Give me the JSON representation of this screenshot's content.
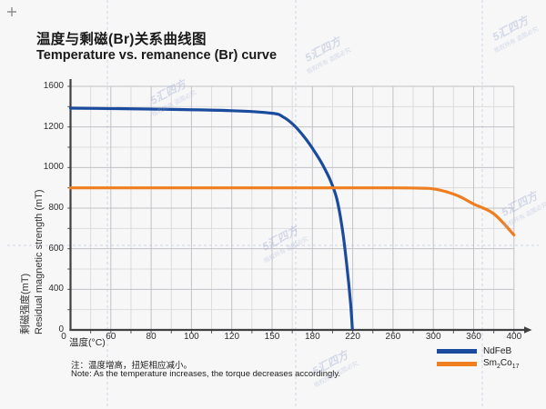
{
  "header": {
    "title_zh": "温度与剩磁(Br)关系曲线图",
    "title_en": "Temperature vs. remanence (Br) curve"
  },
  "chart_data": {
    "type": "line",
    "title_zh": "温度与剩磁(Br)关系曲线图",
    "title_en": "Temperature vs. remanence (Br) curve",
    "x_axis": {
      "label": "温度(°C)",
      "tick_labels": [
        0,
        60,
        80,
        100,
        120,
        150,
        180,
        220,
        260,
        300,
        360,
        400
      ],
      "ticks_evenly_spaced": true
    },
    "y_axis": {
      "label_zh": "剩磁强度(mT)",
      "label_en": "Residual magnetic strength (mT)",
      "tick_labels": [
        0,
        400,
        600,
        800,
        1000,
        1200,
        1600
      ],
      "ticks_evenly_spaced": true
    },
    "grid": true,
    "legend_position": "bottom-right",
    "series": [
      {
        "name": "NdFeB",
        "color": "#1b4b9d",
        "points": [
          [
            0,
            1385
          ],
          [
            40,
            1382
          ],
          [
            80,
            1376
          ],
          [
            120,
            1360
          ],
          [
            150,
            1335
          ],
          [
            158,
            1300
          ],
          [
            166,
            1220
          ],
          [
            174,
            1150
          ],
          [
            182,
            1080
          ],
          [
            190,
            1015
          ],
          [
            198,
            935
          ],
          [
            204,
            850
          ],
          [
            209,
            720
          ],
          [
            213,
            570
          ],
          [
            216,
            430
          ],
          [
            218,
            250
          ],
          [
            219,
            110
          ],
          [
            219.6,
            15
          ]
        ]
      },
      {
        "name": "Sm2Co17",
        "color": "#ee7e20",
        "points": [
          [
            0,
            900
          ],
          [
            60,
            900
          ],
          [
            120,
            900
          ],
          [
            200,
            900
          ],
          [
            260,
            900
          ],
          [
            290,
            898
          ],
          [
            300,
            895
          ],
          [
            320,
            880
          ],
          [
            340,
            856
          ],
          [
            360,
            820
          ],
          [
            380,
            772
          ],
          [
            400,
            668
          ]
        ]
      }
    ]
  },
  "legend": {
    "items": [
      {
        "name": "NdFeB"
      },
      {
        "name_parts": {
          "a": "Sm",
          "s1": "2",
          "b": "Co",
          "s2": "17"
        }
      }
    ]
  },
  "notes": {
    "zh": "注：温度增高，扭矩相应减小。",
    "en": "Note: As the temperature increases, the torque decreases accordingly."
  },
  "watermark": {
    "logo": "5汇四方",
    "sub": "版权所有 盗图必究"
  },
  "colors": {
    "background": "#f7f7f8",
    "axis": "#404042",
    "grid_major": "#c2c2c6",
    "grid_minor": "#dcdcde",
    "dashed_guide": "#ccd4e6",
    "ndfeb_blue": "#1b4b9d",
    "smco_orange": "#ee7e20"
  }
}
